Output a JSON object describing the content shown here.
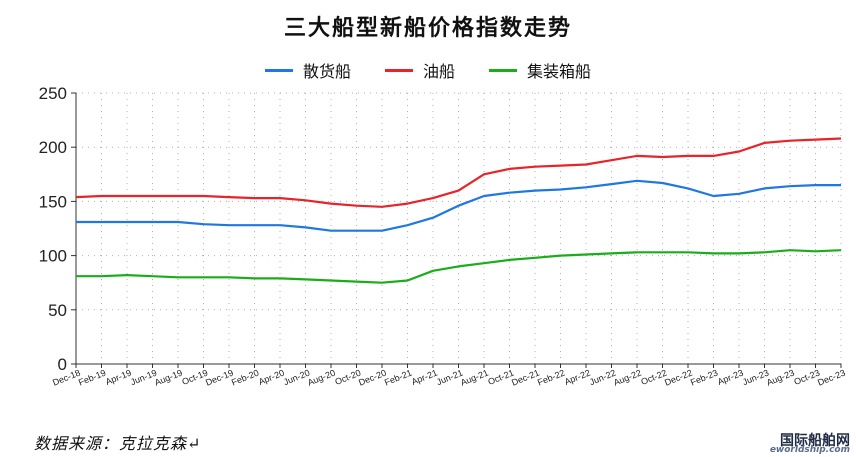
{
  "chart_data": {
    "type": "line",
    "title": "三大船型新船价格指数走势",
    "xlabel": "",
    "ylabel": "",
    "ylim": [
      0,
      250
    ],
    "yticks": [
      0,
      50,
      100,
      150,
      200,
      250
    ],
    "grid": "dotted",
    "legend_position": "top-center",
    "x": [
      "Dec-18",
      "Feb-19",
      "Apr-19",
      "Jun-19",
      "Aug-19",
      "Oct-19",
      "Dec-19",
      "Feb-20",
      "Apr-20",
      "Jun-20",
      "Aug-20",
      "Oct-20",
      "Dec-20",
      "Feb-21",
      "Apr-21",
      "Jun-21",
      "Aug-21",
      "Oct-21",
      "Dec-21",
      "Feb-22",
      "Apr-22",
      "Jun-22",
      "Aug-22",
      "Oct-22",
      "Dec-22",
      "Feb-23",
      "Apr-23",
      "Jun-23",
      "Aug-23",
      "Oct-23",
      "Dec-23"
    ],
    "series": [
      {
        "name": "散货船",
        "color": "#1f77e4",
        "values": [
          131,
          131,
          131,
          131,
          131,
          129,
          128,
          128,
          128,
          126,
          123,
          123,
          123,
          128,
          135,
          146,
          155,
          158,
          160,
          161,
          163,
          166,
          169,
          167,
          162,
          155,
          157,
          162,
          164,
          165,
          165
        ]
      },
      {
        "name": "油船",
        "color": "#e8232a",
        "values": [
          154,
          155,
          155,
          155,
          155,
          155,
          154,
          153,
          153,
          151,
          148,
          146,
          145,
          148,
          153,
          160,
          175,
          180,
          182,
          183,
          184,
          188,
          192,
          191,
          192,
          192,
          196,
          204,
          206,
          207,
          208
        ]
      },
      {
        "name": "集装箱船",
        "color": "#1aad1a",
        "values": [
          81,
          81,
          82,
          81,
          80,
          80,
          80,
          79,
          79,
          78,
          77,
          76,
          75,
          77,
          86,
          90,
          93,
          96,
          98,
          100,
          101,
          102,
          103,
          103,
          103,
          102,
          102,
          103,
          105,
          104,
          105
        ]
      }
    ]
  },
  "source_note": "数据来源：克拉克森↵",
  "brand": {
    "main": "国际船舶网",
    "sub": "eworldship.com"
  }
}
